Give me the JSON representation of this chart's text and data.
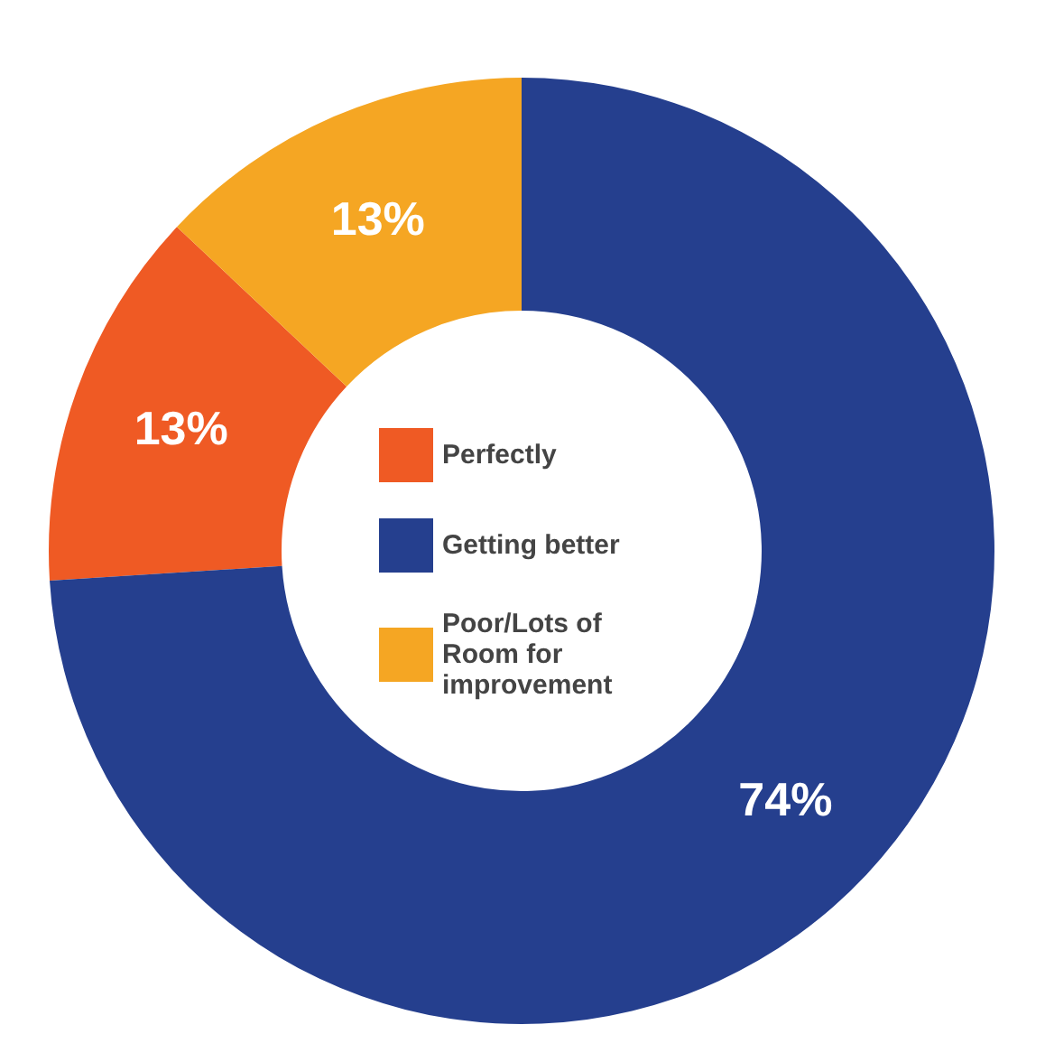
{
  "chart_data": {
    "type": "donut",
    "categories": [
      "Perfectly",
      "Getting better",
      "Poor/Lots of Room for improvement"
    ],
    "values": [
      13,
      74,
      13
    ],
    "value_labels": [
      "13%",
      "74%",
      "13%"
    ],
    "colors": [
      "#ef5a24",
      "#253f8e",
      "#f5a623"
    ],
    "legend": "center"
  }
}
